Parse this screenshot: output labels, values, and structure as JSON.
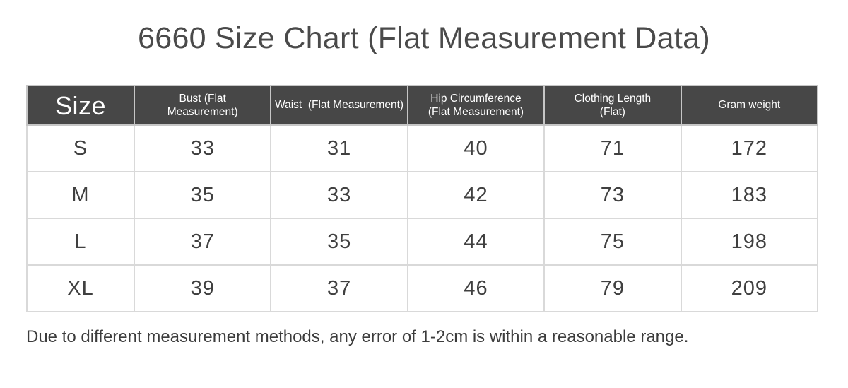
{
  "title": "6660 Size Chart (Flat Measurement Data)",
  "footer_note": "Due to different measurement methods, any error of 1-2cm is within a reasonable range.",
  "colors": {
    "header_bg": "#474747",
    "header_text": "#ffffff",
    "body_text": "#404040",
    "grid_line": "#d9d9d9",
    "title_text": "#4a4a4a",
    "page_bg": "#ffffff"
  },
  "table": {
    "columns": [
      {
        "key": "size",
        "label": "Size"
      },
      {
        "key": "bust",
        "label": "Bust (Flat\nMeasurement)"
      },
      {
        "key": "waist",
        "label": "Waist  (Flat Measurement)"
      },
      {
        "key": "hip",
        "label": "Hip Circumference\n(Flat Measurement)"
      },
      {
        "key": "clothing-length",
        "label": "Clothing Length\n(Flat)"
      },
      {
        "key": "gram-weight",
        "label": "Gram weight"
      }
    ],
    "rows": [
      [
        "S",
        "33",
        "31",
        "40",
        "71",
        "172"
      ],
      [
        "M",
        "35",
        "33",
        "42",
        "73",
        "183"
      ],
      [
        "L",
        "37",
        "35",
        "44",
        "75",
        "198"
      ],
      [
        "XL",
        "39",
        "37",
        "46",
        "79",
        "209"
      ]
    ]
  },
  "chart_data": {
    "type": "table",
    "title": "6660 Size Chart (Flat Measurement Data)",
    "columns": [
      "Size",
      "Bust (Flat Measurement)",
      "Waist (Flat Measurement)",
      "Hip Circumference (Flat Measurement)",
      "Clothing Length (Flat)",
      "Gram weight"
    ],
    "rows": [
      [
        "S",
        33,
        31,
        40,
        71,
        172
      ],
      [
        "M",
        35,
        33,
        42,
        73,
        183
      ],
      [
        "L",
        37,
        35,
        44,
        75,
        198
      ],
      [
        "XL",
        39,
        37,
        46,
        79,
        209
      ]
    ],
    "note": "Due to different measurement methods, any error of 1-2cm is within a reasonable range."
  }
}
